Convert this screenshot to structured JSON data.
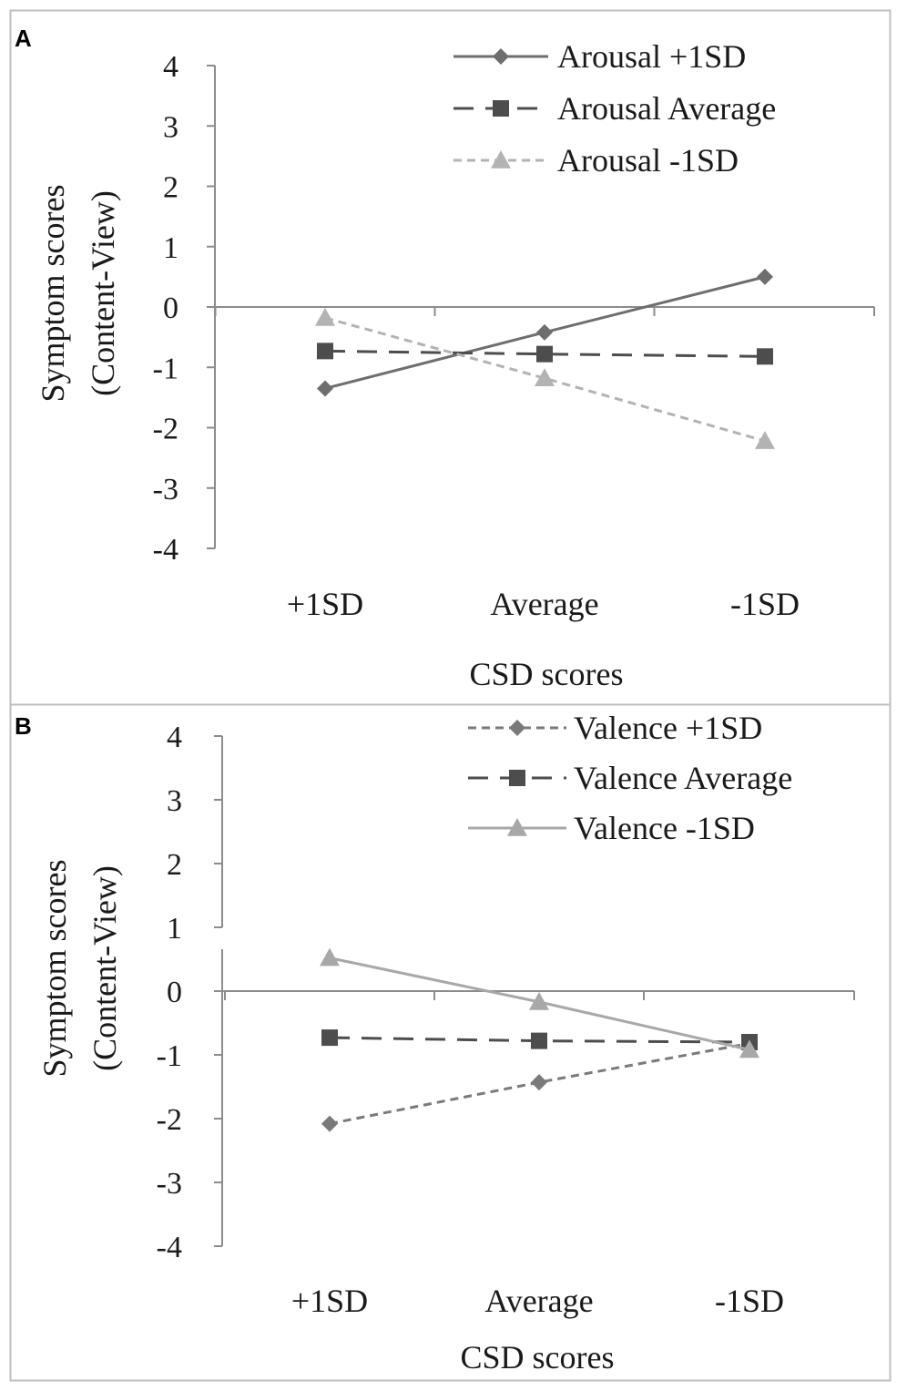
{
  "chart_data": [
    {
      "panel": "A",
      "type": "line",
      "xlabel": "CSD scores",
      "ylabel_line1": "Symptom scores",
      "ylabel_line2": "(Content-View)",
      "categories": [
        "+1SD",
        "Average",
        "-1SD"
      ],
      "ylim": [
        -4,
        4
      ],
      "yticks": [
        "4",
        "3",
        "2",
        "1",
        "0",
        "-1",
        "-2",
        "-3",
        "-4"
      ],
      "legend_position": "top-right",
      "series": [
        {
          "name": "Arousal +1SD",
          "values": [
            -1.35,
            -0.42,
            0.5
          ],
          "color": "#6e6e6e",
          "dash": "solid",
          "marker": "diamond"
        },
        {
          "name": "Arousal Average",
          "values": [
            -0.73,
            -0.78,
            -0.82
          ],
          "color": "#4d4d4d",
          "dash": "long",
          "marker": "square"
        },
        {
          "name": "Arousal -1SD",
          "values": [
            -0.18,
            -1.18,
            -2.22
          ],
          "color": "#b3b3b3",
          "dash": "short",
          "marker": "triangle"
        }
      ]
    },
    {
      "panel": "B",
      "type": "line",
      "xlabel": "CSD scores",
      "ylabel_line1": "Symptom scores",
      "ylabel_line2": "(Content-View)",
      "categories": [
        "+1SD",
        "Average",
        "-1SD"
      ],
      "ylim": [
        -4,
        4
      ],
      "yticks": [
        "4",
        "3",
        "2",
        "1",
        "0",
        "-1",
        "-2",
        "-3",
        "-4"
      ],
      "legend_position": "top-right",
      "series": [
        {
          "name": "Valence +1SD",
          "values": [
            -2.08,
            -1.43,
            -0.82
          ],
          "color": "#7a7a7a",
          "dash": "short",
          "marker": "diamond"
        },
        {
          "name": "Valence Average",
          "values": [
            -0.73,
            -0.78,
            -0.8
          ],
          "color": "#4d4d4d",
          "dash": "long",
          "marker": "square"
        },
        {
          "name": "Valence -1SD",
          "values": [
            0.52,
            -0.17,
            -0.92
          ],
          "color": "#a8a8a8",
          "dash": "solid",
          "marker": "triangle"
        }
      ]
    }
  ]
}
